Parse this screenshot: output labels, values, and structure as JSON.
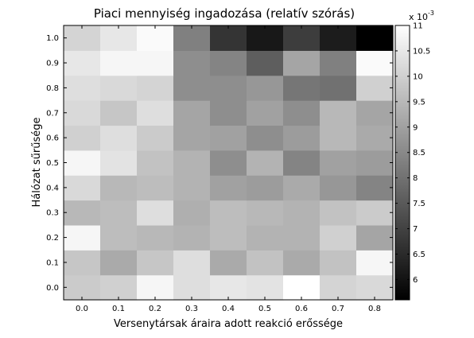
{
  "chart_data": {
    "type": "heatmap",
    "title": "Piaci mennyiség ingadozása (relatív szórás)",
    "xlabel": "Versenytársak áraira adott reakció erőssége",
    "ylabel": "Hálózat sűrűsége",
    "x": [
      "0.0",
      "0.1",
      "0.2",
      "0.3",
      "0.4",
      "0.5",
      "0.6",
      "0.7",
      "0.8"
    ],
    "y": [
      "0.0",
      "0.1",
      "0.2",
      "0.3",
      "0.4",
      "0.5",
      "0.6",
      "0.7",
      "0.8",
      "0.9",
      "1.0"
    ],
    "values": [
      [
        9.9,
        10.0,
        10.8,
        10.3,
        10.5,
        10.4,
        11.0,
        10.1,
        10.2
      ],
      [
        9.8,
        9.2,
        9.8,
        10.3,
        9.2,
        9.7,
        9.2,
        9.7,
        10.8
      ],
      [
        10.8,
        9.6,
        9.5,
        9.4,
        9.6,
        9.4,
        9.4,
        10.0,
        9.1
      ],
      [
        9.5,
        9.6,
        10.3,
        9.3,
        9.6,
        9.5,
        9.4,
        9.7,
        9.9
      ],
      [
        10.2,
        9.5,
        9.6,
        9.4,
        9.0,
        8.9,
        9.2,
        8.8,
        8.4
      ],
      [
        10.8,
        10.4,
        9.7,
        9.4,
        8.6,
        9.4,
        8.4,
        9.0,
        8.9
      ],
      [
        10.0,
        10.3,
        9.9,
        9.1,
        9.0,
        8.6,
        8.9,
        9.5,
        9.2
      ],
      [
        10.2,
        9.8,
        10.3,
        9.1,
        8.6,
        9.0,
        8.6,
        9.5,
        9.1
      ],
      [
        10.3,
        10.2,
        10.1,
        8.6,
        8.6,
        8.8,
        8.1,
        8.0,
        10.0
      ],
      [
        10.5,
        10.8,
        10.8,
        8.6,
        8.4,
        7.6,
        9.1,
        8.3,
        10.9
      ],
      [
        10.1,
        10.5,
        10.9,
        8.3,
        6.7,
        6.1,
        6.9,
        6.2,
        5.6
      ]
    ],
    "colorscale": "gray",
    "color_min": "#000000",
    "color_max": "#ffffff",
    "clim": [
      5.6,
      11.0
    ],
    "colorbar": {
      "ticks": [
        "6",
        "6.5",
        "7",
        "7.5",
        "8",
        "8.5",
        "9",
        "9.5",
        "10",
        "10.5",
        "11"
      ],
      "tick_values": [
        6,
        6.5,
        7,
        7.5,
        8,
        8.5,
        9,
        9.5,
        10,
        10.5,
        11
      ],
      "multiplier_base": "x 10",
      "multiplier_exponent": "-3"
    },
    "grid": false
  }
}
